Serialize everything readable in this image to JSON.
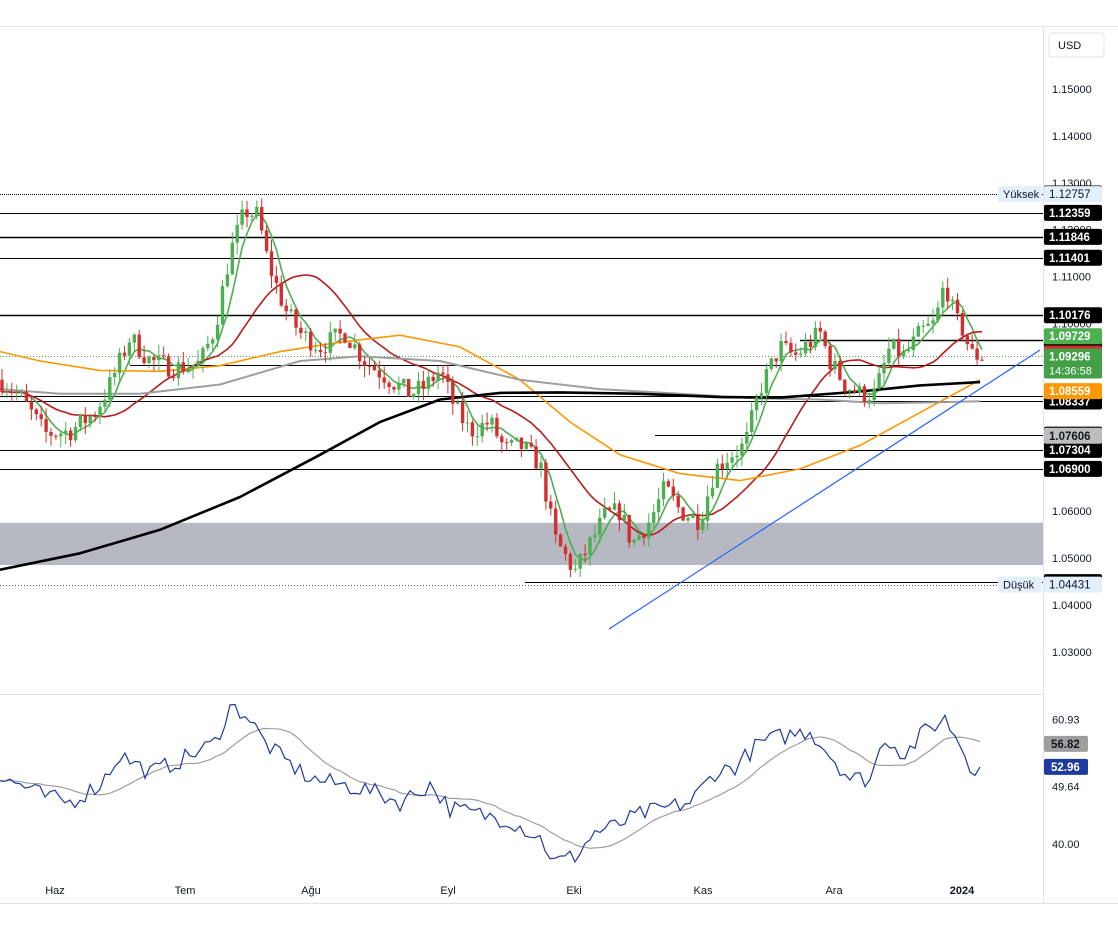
{
  "chart_data": {
    "type": "candlestick",
    "currency_label": "USD",
    "price_axis": {
      "range": [
        1.021,
        1.163
      ],
      "ticks": [
        "1.15000",
        "1.14000",
        "1.13000",
        "1.12000",
        "1.11000",
        "1.10000",
        "1.06000",
        "1.05000",
        "1.04000",
        "1.03000"
      ]
    },
    "time_axis": {
      "labels": [
        "Haz",
        "Tem",
        "Ağu",
        "Eyl",
        "Eki",
        "Kas",
        "Ara",
        "2024"
      ]
    },
    "high_marker": {
      "label": "Yüksek",
      "value": "1.12757"
    },
    "low_marker": {
      "label": "Düşük",
      "value": "1.04431"
    },
    "levels": [
      {
        "value": "1.12771",
        "style": "dotted"
      },
      {
        "value": "1.12359",
        "style": "line"
      },
      {
        "value": "1.11846",
        "style": "line"
      },
      {
        "value": "1.11401",
        "style": "line"
      },
      {
        "value": "1.10176",
        "style": "line"
      },
      {
        "value": "1.09650",
        "style": "line"
      },
      {
        "value": "1.09105",
        "style": "line"
      },
      {
        "value": "1.08452",
        "style": "line"
      },
      {
        "value": "1.08337",
        "style": "line"
      },
      {
        "value": "1.07630",
        "style": "line"
      },
      {
        "value": "1.07304",
        "style": "line"
      },
      {
        "value": "1.06900",
        "style": "line"
      },
      {
        "value": "1.04485",
        "style": "line"
      }
    ],
    "moving_average_labels": [
      {
        "value": "1.09729",
        "color": "#4caf50"
      },
      {
        "value": "1.09356",
        "color": "#d32f2f"
      },
      {
        "value": "1.08559",
        "color": "#ff9800"
      },
      {
        "value": "1.07606",
        "color": "#bdbdbd"
      }
    ],
    "current_price": {
      "value": "1.09296",
      "countdown": "14:36:58",
      "color": "#43a047"
    },
    "support_zone": [
      1.0485,
      1.0575
    ],
    "rsi": {
      "range": [
        34.0,
        65.0
      ],
      "ticks": [
        "60.93",
        "49.64",
        "40.00"
      ],
      "rsi_label": "52.96",
      "signal_label": "56.82"
    },
    "colors": {
      "up": "#4caf50",
      "down": "#d32f2f",
      "ma_green": "#4caf50",
      "ma_red": "#b71c1c",
      "ma_orange": "#ff9800",
      "ma_gray": "#9e9e9e",
      "ma_black": "#000000",
      "trendline": "#2962ff",
      "rsi": "#1e3a9e",
      "rsi_signal": "#9e9e9e"
    }
  }
}
